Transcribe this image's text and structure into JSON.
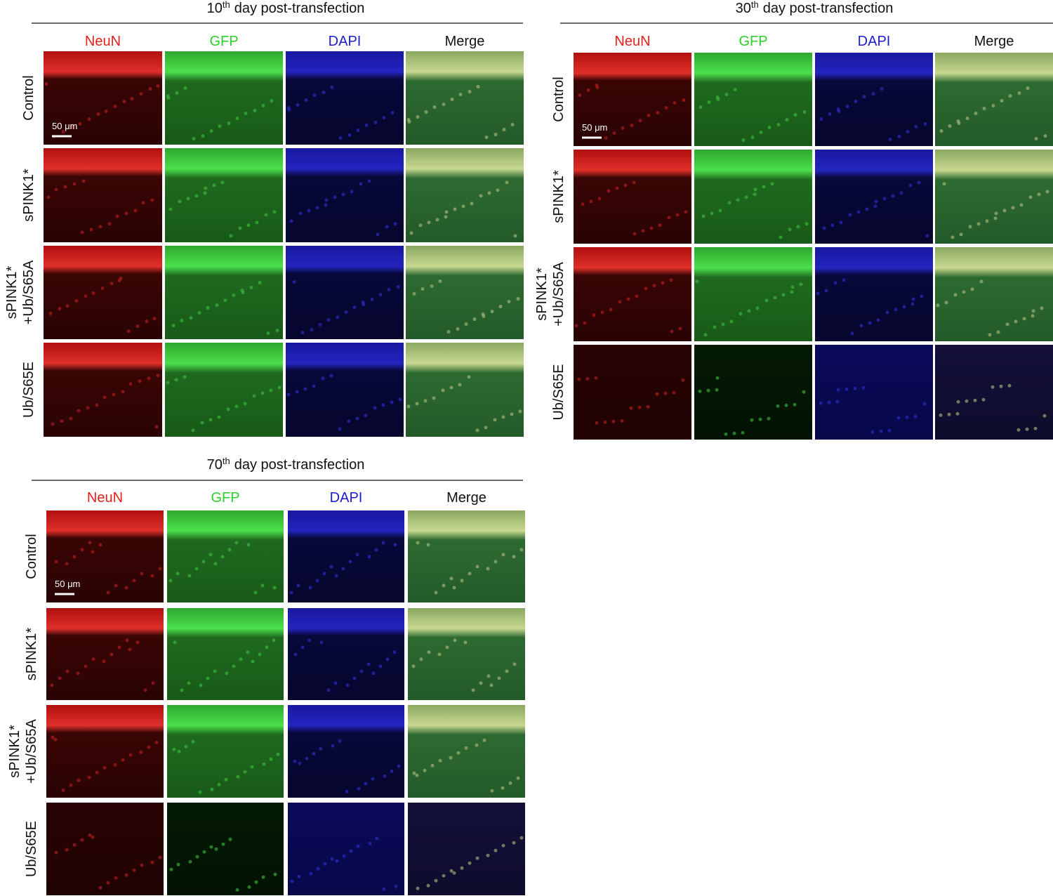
{
  "panels": [
    {
      "title": {
        "number": "10",
        "sup": "th",
        "rest": "day post-transfection"
      },
      "columns": [
        "NeuN",
        "GFP",
        "DAPI",
        "Merge"
      ],
      "rows": [
        [
          "Control"
        ],
        [
          "sPINK1*"
        ],
        [
          "sPINK1*",
          "+Ub/S65A"
        ],
        [
          "Ub/S65E"
        ]
      ],
      "scale_bar": "50 μm"
    },
    {
      "title": {
        "number": "30",
        "sup": "th",
        "rest": "day post-transfection"
      },
      "columns": [
        "NeuN",
        "GFP",
        "DAPI",
        "Merge"
      ],
      "rows": [
        [
          "Control"
        ],
        [
          "sPINK1*"
        ],
        [
          "sPINK1*",
          "+Ub/S65A"
        ],
        [
          "Ub/S65E"
        ]
      ],
      "scale_bar": "50 μm"
    },
    {
      "title": {
        "number": "70",
        "sup": "th",
        "rest": "day post-transfection"
      },
      "columns": [
        "NeuN",
        "GFP",
        "DAPI",
        "Merge"
      ],
      "rows": [
        [
          "Control"
        ],
        [
          "sPINK1*"
        ],
        [
          "sPINK1*",
          "+Ub/S65A"
        ],
        [
          "Ub/S65E"
        ]
      ],
      "scale_bar": "50 μm"
    }
  ]
}
